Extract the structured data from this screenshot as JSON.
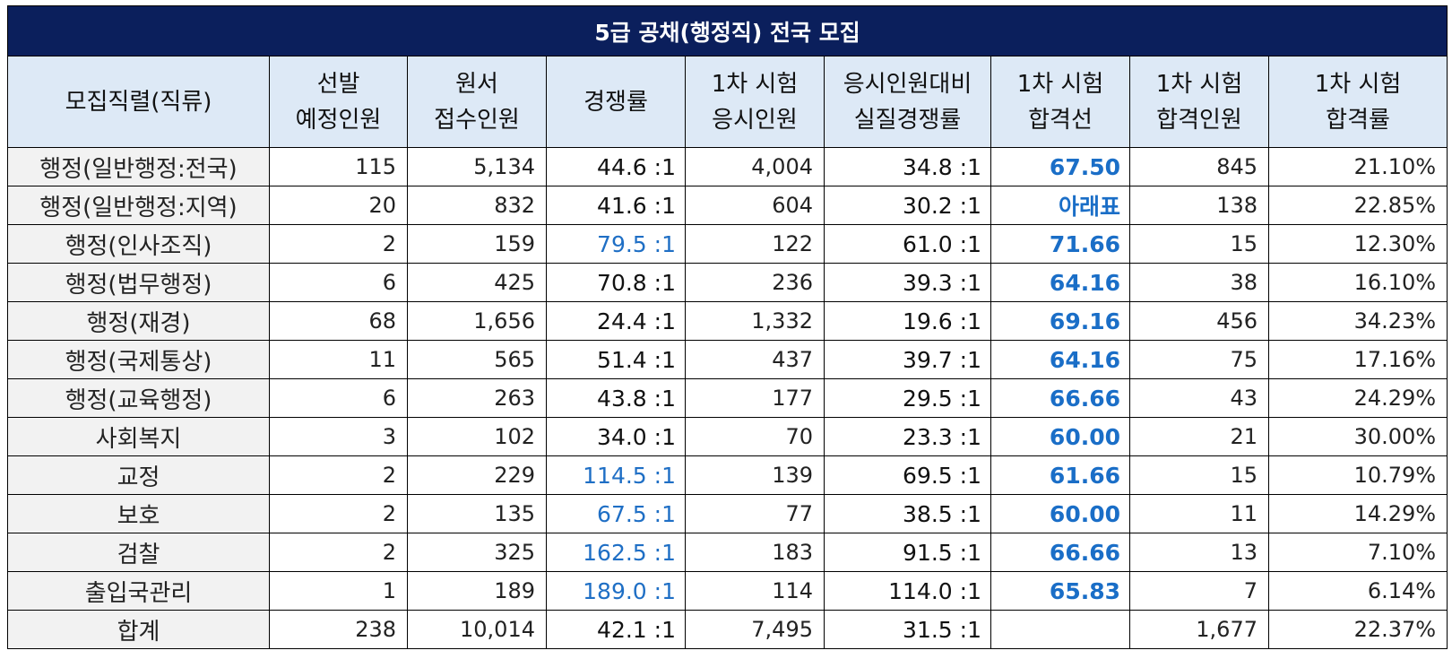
{
  "title": "5급 공채(행정직) 전국 모집",
  "headers": [
    [
      "모집직렬(직류)"
    ],
    [
      "선발",
      "예정인원"
    ],
    [
      "원서",
      "접수인원"
    ],
    [
      "경쟁률"
    ],
    [
      "1차 시험",
      "응시인원"
    ],
    [
      "응시인원대비",
      "실질경쟁률"
    ],
    [
      "1차 시험",
      "합격선"
    ],
    [
      "1차 시험",
      "합격인원"
    ],
    [
      "1차 시험",
      "합격률"
    ]
  ],
  "rows": [
    {
      "name": "행정(일반행정:전국)",
      "planned": "115",
      "applied": "5,134",
      "ratio": "44.6 :1",
      "ratio_hi": false,
      "takers": "4,004",
      "real_ratio": "34.8 :1",
      "cutoff": "67.50",
      "passed": "845",
      "pass_rate": "21.10%"
    },
    {
      "name": "행정(일반행정:지역)",
      "planned": "20",
      "applied": "832",
      "ratio": "41.6 :1",
      "ratio_hi": false,
      "takers": "604",
      "real_ratio": "30.2 :1",
      "cutoff": "아래표",
      "passed": "138",
      "pass_rate": "22.85%"
    },
    {
      "name": "행정(인사조직)",
      "planned": "2",
      "applied": "159",
      "ratio": "79.5 :1",
      "ratio_hi": true,
      "takers": "122",
      "real_ratio": "61.0 :1",
      "cutoff": "71.66",
      "passed": "15",
      "pass_rate": "12.30%"
    },
    {
      "name": "행정(법무행정)",
      "planned": "6",
      "applied": "425",
      "ratio": "70.8 :1",
      "ratio_hi": false,
      "takers": "236",
      "real_ratio": "39.3 :1",
      "cutoff": "64.16",
      "passed": "38",
      "pass_rate": "16.10%"
    },
    {
      "name": "행정(재경)",
      "planned": "68",
      "applied": "1,656",
      "ratio": "24.4 :1",
      "ratio_hi": false,
      "takers": "1,332",
      "real_ratio": "19.6 :1",
      "cutoff": "69.16",
      "passed": "456",
      "pass_rate": "34.23%"
    },
    {
      "name": "행정(국제통상)",
      "planned": "11",
      "applied": "565",
      "ratio": "51.4 :1",
      "ratio_hi": false,
      "takers": "437",
      "real_ratio": "39.7 :1",
      "cutoff": "64.16",
      "passed": "75",
      "pass_rate": "17.16%"
    },
    {
      "name": "행정(교육행정)",
      "planned": "6",
      "applied": "263",
      "ratio": "43.8 :1",
      "ratio_hi": false,
      "takers": "177",
      "real_ratio": "29.5 :1",
      "cutoff": "66.66",
      "passed": "43",
      "pass_rate": "24.29%"
    },
    {
      "name": "사회복지",
      "planned": "3",
      "applied": "102",
      "ratio": "34.0 :1",
      "ratio_hi": false,
      "takers": "70",
      "real_ratio": "23.3 :1",
      "cutoff": "60.00",
      "passed": "21",
      "pass_rate": "30.00%"
    },
    {
      "name": "교정",
      "planned": "2",
      "applied": "229",
      "ratio": "114.5 :1",
      "ratio_hi": true,
      "takers": "139",
      "real_ratio": "69.5 :1",
      "cutoff": "61.66",
      "passed": "15",
      "pass_rate": "10.79%"
    },
    {
      "name": "보호",
      "planned": "2",
      "applied": "135",
      "ratio": "67.5 :1",
      "ratio_hi": true,
      "takers": "77",
      "real_ratio": "38.5 :1",
      "cutoff": "60.00",
      "passed": "11",
      "pass_rate": "14.29%"
    },
    {
      "name": "검찰",
      "planned": "2",
      "applied": "325",
      "ratio": "162.5 :1",
      "ratio_hi": true,
      "takers": "183",
      "real_ratio": "91.5 :1",
      "cutoff": "66.66",
      "passed": "13",
      "pass_rate": "7.10%"
    },
    {
      "name": "출입국관리",
      "planned": "1",
      "applied": "189",
      "ratio": "189.0 :1",
      "ratio_hi": true,
      "takers": "114",
      "real_ratio": "114.0 :1",
      "cutoff": "65.83",
      "passed": "7",
      "pass_rate": "6.14%"
    }
  ],
  "total": {
    "name": "합계",
    "planned": "238",
    "applied": "10,014",
    "ratio": "42.1 :1",
    "takers": "7,495",
    "real_ratio": "31.5 :1",
    "cutoff": "",
    "passed": "1,677",
    "pass_rate": "22.37%"
  },
  "colors": {
    "title_bg": "#0b1f5c",
    "header_bg": "#dde9f6",
    "name_bg": "#f2f2f2",
    "accent_blue": "#1a6ec7"
  }
}
